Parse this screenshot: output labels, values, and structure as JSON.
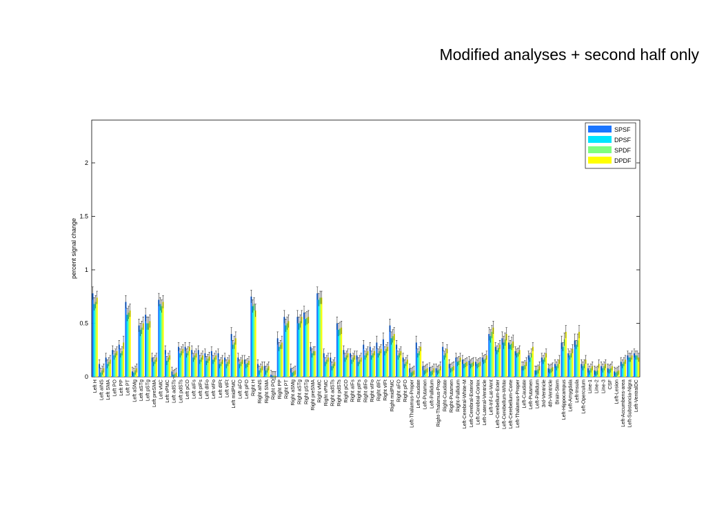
{
  "slide": {
    "title": "Modified analyses + second half only"
  },
  "colors": {
    "SPSF": "#1a75ff",
    "DPSF": "#00e5ff",
    "SPDF": "#7fff7f",
    "DPDF": "#ffff00",
    "error": "#000000"
  },
  "chart_data": {
    "type": "bar",
    "ylabel": "percent signal change",
    "xlabel": "",
    "ylim": [
      0,
      2.4
    ],
    "yticks": [
      0,
      0.5,
      1,
      1.5,
      2
    ],
    "legend": {
      "placement": "top-right",
      "entries": [
        "SPSF",
        "DPSF",
        "SPDF",
        "DPDF"
      ]
    },
    "categories": [
      "Left H",
      "Left aINS",
      "Left SMA",
      "Left PO",
      "Left PP",
      "Left PT",
      "Left aSMg",
      "Left aSTg",
      "Left pSTg",
      "Left preSMA",
      "Left vMC",
      "Left vPMC",
      "Left adSTs",
      "Left pdSTs",
      "Left pCO",
      "Left aIFs",
      "Left pIFs",
      "Left dIFo",
      "Left vIFo",
      "Left dIFt",
      "Left vIFt",
      "Left midPMC",
      "Left aFO",
      "Left pFO",
      "Right H",
      "Right aINS",
      "Right SMA",
      "Right PO",
      "Right PP",
      "Right PT",
      "Right aSMg",
      "Right aSTg",
      "Right pSTg",
      "Right preSMA",
      "Right vMC",
      "Right vPMC",
      "Right adSTs",
      "Right pdSTs",
      "Right pCO",
      "Right aIFs",
      "Right pIFs",
      "Right dIFo",
      "Right vIFo",
      "Right dIFt",
      "Right vIFt",
      "Right midPMC",
      "Right aFO",
      "Right pFO",
      "Left-Thalamus-Proper",
      "Left-Caudate",
      "Left-Putamen",
      "Left-Pallidum",
      "Right-Thalamus-Prop",
      "Right-Caudate",
      "Right-Putamen",
      "Right-Pallidum",
      "Left-Cerebral-White-M",
      "Left-Cerebral-Exterior",
      "Left-Cerebral-Cortex",
      "Left-Lateral-Ventricle",
      "Left-Inf-Lat-Vent",
      "Left-Cerebellum-Exter",
      "Left-Cerebellum-White",
      "Left-Cerebellum-Corte",
      "Left-Thalamus-Proper",
      "Left-Caudate",
      "Left-Putamen",
      "Left-Pallidum",
      "3rd-Ventricle",
      "4th-Ventricle",
      "Brain-Stem",
      "Left-Hippocampus",
      "Left-Amygdala",
      "Left-Insula",
      "Left-Operculum",
      "Line-1",
      "Line-2",
      "Line-3",
      "CSF",
      "Left-Lesion",
      "Left-Accumbens-area",
      "Left-Substancia-Nigra",
      "Left-VentralDC"
    ],
    "series": [
      {
        "name": "SPSF",
        "values": [
          0.78,
          0.12,
          0.18,
          0.25,
          0.3,
          0.7,
          0.05,
          0.48,
          0.58,
          0.18,
          0.72,
          0.25,
          0.05,
          0.28,
          0.28,
          0.25,
          0.25,
          0.22,
          0.24,
          0.22,
          0.18,
          0.4,
          0.18,
          0.16,
          0.75,
          0.12,
          0.1,
          0.02,
          0.36,
          0.56,
          0.08,
          0.56,
          0.6,
          0.28,
          0.78,
          0.22,
          0.18,
          0.5,
          0.25,
          0.22,
          0.2,
          0.3,
          0.28,
          0.32,
          0.35,
          0.48,
          0.3,
          0.18,
          0.08,
          0.32,
          0.1,
          0.09,
          0.08,
          0.28,
          0.12,
          0.18,
          0.16,
          0.15,
          0.14,
          0.18,
          0.4,
          0.28,
          0.36,
          0.32,
          0.24,
          0.1,
          0.2,
          0.06,
          0.18,
          0.08,
          0.12,
          0.32,
          0.22,
          0.34,
          0.12,
          0.08,
          0.06,
          0.1,
          0.08,
          0.05,
          0.14,
          0.2,
          0.22
        ]
      },
      {
        "name": "DPSF",
        "values": [
          0.68,
          0.04,
          0.12,
          0.2,
          0.22,
          0.58,
          0.04,
          0.44,
          0.5,
          0.14,
          0.68,
          0.15,
          0.02,
          0.22,
          0.22,
          0.18,
          0.16,
          0.15,
          0.16,
          0.12,
          0.12,
          0.3,
          0.12,
          0.12,
          0.66,
          0.06,
          0.06,
          0.01,
          0.28,
          0.48,
          0.04,
          0.5,
          0.54,
          0.22,
          0.72,
          0.14,
          0.1,
          0.44,
          0.18,
          0.16,
          0.14,
          0.2,
          0.2,
          0.22,
          0.24,
          0.36,
          0.2,
          0.12,
          0.04,
          0.22,
          0.06,
          0.05,
          0.06,
          0.2,
          0.08,
          0.14,
          0.12,
          0.12,
          0.12,
          0.16,
          0.38,
          0.25,
          0.32,
          0.3,
          0.22,
          0.1,
          0.18,
          0.06,
          0.16,
          0.07,
          0.1,
          0.28,
          0.2,
          0.3,
          0.1,
          0.06,
          0.05,
          0.08,
          0.07,
          0.04,
          0.12,
          0.18,
          0.2
        ]
      },
      {
        "name": "SPDF",
        "values": [
          0.7,
          0.06,
          0.14,
          0.22,
          0.24,
          0.6,
          0.06,
          0.46,
          0.5,
          0.16,
          0.66,
          0.18,
          0.03,
          0.24,
          0.24,
          0.2,
          0.18,
          0.17,
          0.18,
          0.14,
          0.14,
          0.32,
          0.14,
          0.13,
          0.68,
          0.08,
          0.08,
          0.01,
          0.3,
          0.5,
          0.05,
          0.52,
          0.55,
          0.24,
          0.74,
          0.16,
          0.12,
          0.45,
          0.2,
          0.18,
          0.16,
          0.22,
          0.22,
          0.24,
          0.26,
          0.38,
          0.22,
          0.14,
          0.05,
          0.24,
          0.07,
          0.06,
          0.07,
          0.22,
          0.09,
          0.15,
          0.13,
          0.13,
          0.13,
          0.17,
          0.42,
          0.27,
          0.35,
          0.31,
          0.23,
          0.11,
          0.22,
          0.07,
          0.18,
          0.08,
          0.12,
          0.35,
          0.22,
          0.34,
          0.12,
          0.08,
          0.06,
          0.1,
          0.08,
          0.05,
          0.14,
          0.18,
          0.2
        ]
      },
      {
        "name": "DPDF",
        "values": [
          0.74,
          0.08,
          0.16,
          0.24,
          0.32,
          0.62,
          0.08,
          0.5,
          0.52,
          0.18,
          0.7,
          0.2,
          0.04,
          0.26,
          0.28,
          0.22,
          0.2,
          0.19,
          0.2,
          0.16,
          0.16,
          0.36,
          0.16,
          0.15,
          0.62,
          0.1,
          0.1,
          0.01,
          0.32,
          0.52,
          0.06,
          0.56,
          0.56,
          0.24,
          0.74,
          0.18,
          0.14,
          0.46,
          0.22,
          0.2,
          0.18,
          0.24,
          0.24,
          0.26,
          0.28,
          0.4,
          0.24,
          0.16,
          0.06,
          0.28,
          0.08,
          0.08,
          0.1,
          0.26,
          0.1,
          0.18,
          0.14,
          0.14,
          0.14,
          0.2,
          0.46,
          0.3,
          0.4,
          0.33,
          0.25,
          0.14,
          0.28,
          0.1,
          0.22,
          0.09,
          0.16,
          0.42,
          0.26,
          0.42,
          0.16,
          0.1,
          0.12,
          0.12,
          0.1,
          0.06,
          0.16,
          0.2,
          0.18
        ]
      }
    ]
  }
}
